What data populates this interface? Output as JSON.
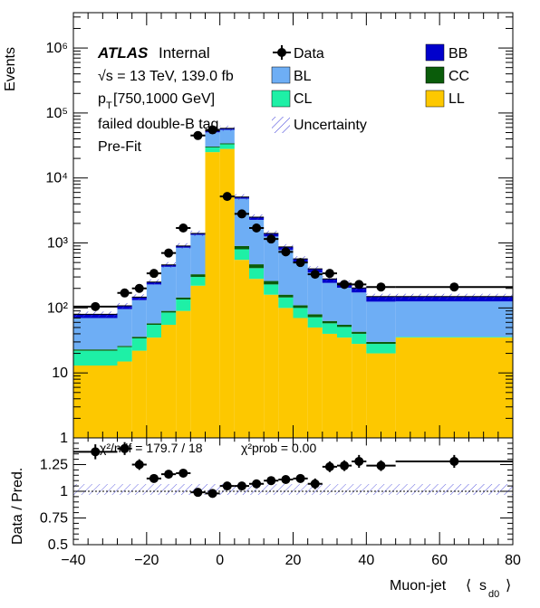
{
  "colors": {
    "BB": "#0000cc",
    "CC": "#0a5c0a",
    "CL": "#1ef0a6",
    "BL": "#6eaef5",
    "LL": "#fdc800",
    "uncertainty": "#3b3bd9",
    "data": "#000000"
  },
  "labels": {
    "atlas": "ATLAS",
    "internal": "Internal",
    "energy": "√s = 13 TeV, 139.0 fb",
    "pt_main": "p",
    "pt_sub": "T",
    "pt_range": " [750,1000 GeV]",
    "tag": "failed double-B tag",
    "fit": "Pre-Fit",
    "chi2_text": "χ²/ndf = 179.7 / 18",
    "chi2prob_text": "χ²prob = 0.00"
  },
  "chart_data": [
    {
      "type": "bar",
      "stacked_histogram": true,
      "ylabel": "Events",
      "yscale": "log",
      "ylim": [
        1,
        3500000
      ],
      "xlim": [
        -40,
        80
      ],
      "legend_position": "top",
      "legend": [
        "Data",
        "BB",
        "BL",
        "CC",
        "CL",
        "LL",
        "Uncertainty"
      ],
      "bin_edges": [
        -40,
        -28,
        -24,
        -20,
        -16,
        -12,
        -8,
        -4,
        0,
        4,
        8,
        12,
        16,
        20,
        24,
        28,
        32,
        36,
        40,
        48,
        80
      ],
      "series": [
        {
          "name": "LL",
          "values": [
            13,
            15,
            22,
            35,
            55,
            90,
            220,
            25000,
            28000,
            550,
            280,
            160,
            100,
            70,
            50,
            40,
            35,
            28,
            20,
            35
          ]
        },
        {
          "name": "CL",
          "values": [
            9,
            10,
            12,
            20,
            30,
            45,
            80,
            4500,
            5000,
            250,
            130,
            70,
            45,
            30,
            22,
            18,
            16,
            12,
            8,
            1
          ]
        },
        {
          "name": "CC",
          "values": [
            1,
            1,
            2,
            3,
            5,
            10,
            30,
            900,
            1100,
            100,
            60,
            30,
            15,
            10,
            8,
            5,
            4,
            3,
            2,
            0
          ]
        },
        {
          "name": "BL",
          "values": [
            47,
            70,
            96,
            172,
            340,
            700,
            1000,
            20000,
            21000,
            3900,
            1800,
            1000,
            620,
            390,
            270,
            180,
            150,
            130,
            95,
            90
          ]
        },
        {
          "name": "BB",
          "values": [
            10,
            12,
            15,
            20,
            30,
            55,
            70,
            2600,
            2900,
            300,
            230,
            140,
            90,
            70,
            50,
            37,
            35,
            30,
            25,
            24
          ]
        }
      ],
      "data_points": {
        "name": "Data",
        "x": [
          -34,
          -26,
          -22,
          -18,
          -14,
          -10,
          -6,
          -2,
          2,
          6,
          10,
          14,
          18,
          22,
          26,
          30,
          34,
          38,
          44,
          64
        ],
        "y": [
          105,
          170,
          200,
          340,
          700,
          1700,
          45000,
          55000,
          5200,
          2800,
          1700,
          1150,
          730,
          500,
          330,
          340,
          230,
          230,
          210,
          210
        ]
      },
      "x_ticks": [
        -40,
        -20,
        0,
        20,
        40,
        60,
        80
      ],
      "y_tick_labels": [
        "1",
        "10",
        "10²",
        "10³",
        "10⁴",
        "10⁵",
        "10⁶"
      ]
    },
    {
      "type": "scatter",
      "xlabel": "Muon-jet ⟨ s_d0 ⟩",
      "xlabel_main": "Muon-jet",
      "xlabel_lbrack": "⟨",
      "xlabel_s": "s",
      "xlabel_sub": "d0",
      "xlabel_rbrack": "⟩",
      "ylabel": "Data / Pred.",
      "ylim": [
        0.5,
        1.5
      ],
      "xlim": [
        -40,
        80
      ],
      "x": [
        -34,
        -26,
        -22,
        -18,
        -14,
        -10,
        -6,
        -2,
        2,
        6,
        10,
        14,
        18,
        22,
        26,
        30,
        34,
        38,
        44,
        64
      ],
      "x_err": [
        6,
        2,
        2,
        2,
        2,
        2,
        2,
        2,
        2,
        2,
        2,
        2,
        2,
        2,
        2,
        2,
        2,
        2,
        4,
        16
      ],
      "y": [
        1.37,
        1.4,
        1.25,
        1.12,
        1.16,
        1.17,
        0.99,
        0.98,
        1.05,
        1.05,
        1.07,
        1.1,
        1.11,
        1.12,
        1.07,
        1.23,
        1.24,
        1.28,
        1.24,
        1.28
      ],
      "y_err": [
        0.07,
        0.06,
        0.05,
        0.03,
        0.02,
        0.02,
        0.01,
        0.01,
        0.02,
        0.02,
        0.03,
        0.03,
        0.03,
        0.04,
        0.05,
        0.05,
        0.05,
        0.06,
        0.05,
        0.06
      ],
      "reference_line": 1,
      "y_ticks": [
        0.5,
        0.75,
        1,
        1.25
      ],
      "y_tick_labels": [
        "0.5",
        "0.75",
        "1",
        "1.25"
      ],
      "x_ticks": [
        -40,
        -20,
        0,
        20,
        40,
        60,
        80
      ],
      "x_tick_labels": [
        "−40",
        "−20",
        "0",
        "20",
        "40",
        "60",
        "80"
      ]
    }
  ]
}
